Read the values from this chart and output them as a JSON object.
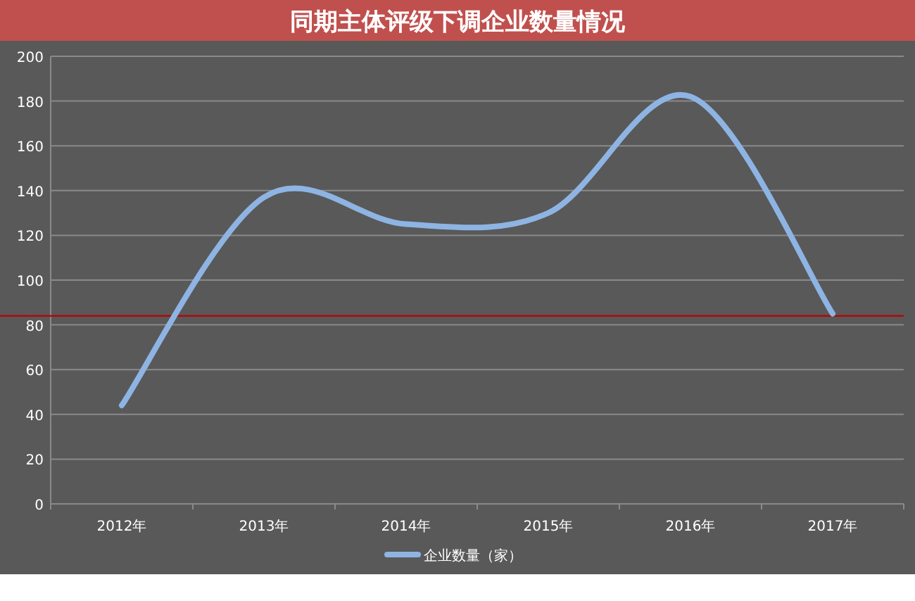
{
  "chart_data": {
    "type": "line",
    "title": "同期主体评级下调企业数量情况",
    "categories": [
      "2012年",
      "2013年",
      "2014年",
      "2015年",
      "2016年",
      "2017年"
    ],
    "series": [
      {
        "name": "企业数量（家）",
        "color": "#8eb4e3",
        "values": [
          44,
          137,
          125,
          130,
          182,
          85
        ]
      }
    ],
    "ylim": [
      0,
      200
    ],
    "yticks": [
      0,
      20,
      40,
      60,
      80,
      100,
      120,
      140,
      160,
      180,
      200
    ],
    "grid": "y",
    "legend": "bottom",
    "ref_lines": [
      {
        "axis": "y",
        "value": 84,
        "color": "#c00000"
      }
    ]
  }
}
